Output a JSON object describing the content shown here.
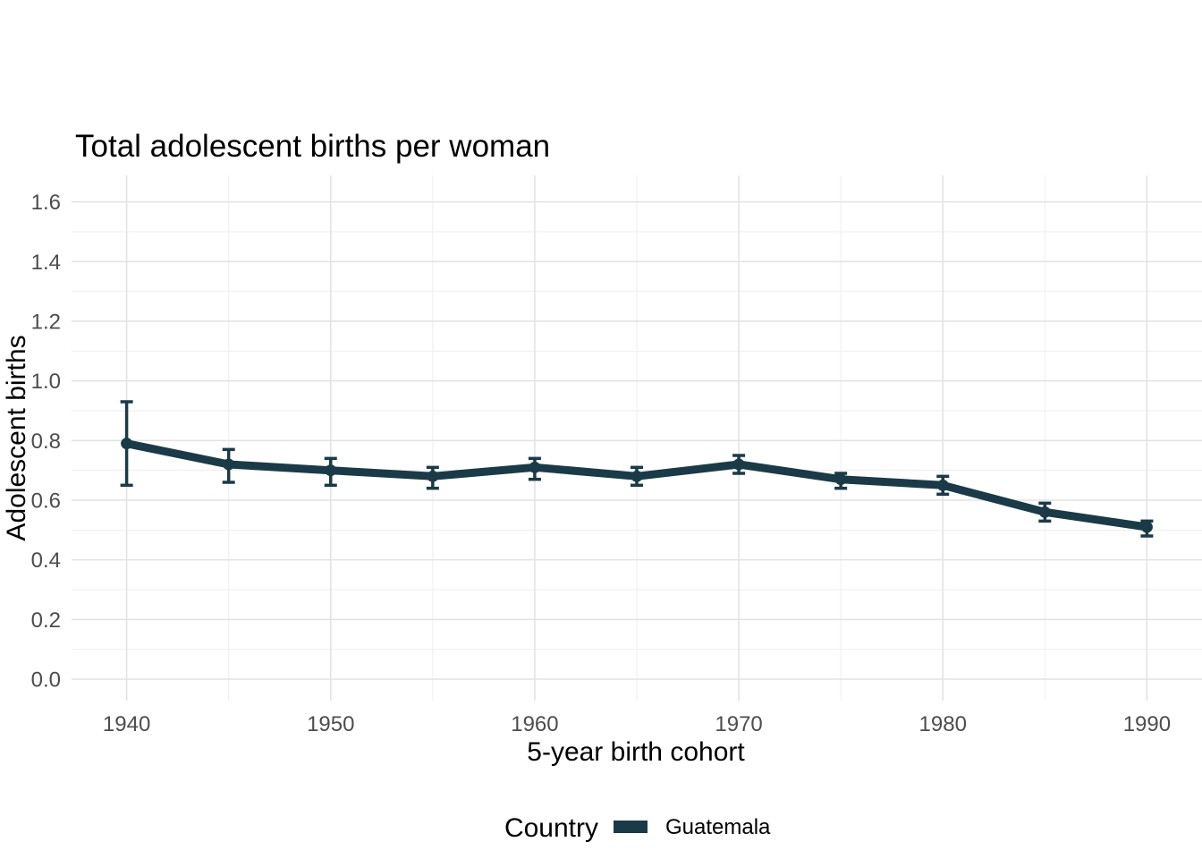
{
  "chart_data": {
    "type": "line",
    "title": "Total adolescent births per woman",
    "xlabel": "5-year birth cohort",
    "ylabel": "Adolescent births",
    "x": [
      1940,
      1945,
      1950,
      1955,
      1960,
      1965,
      1970,
      1975,
      1980,
      1985,
      1990
    ],
    "series": [
      {
        "name": "Guatemala",
        "values": [
          0.79,
          0.72,
          0.7,
          0.68,
          0.71,
          0.68,
          0.72,
          0.67,
          0.65,
          0.56,
          0.51
        ],
        "lower": [
          0.65,
          0.66,
          0.65,
          0.64,
          0.67,
          0.65,
          0.69,
          0.64,
          0.62,
          0.53,
          0.48
        ],
        "upper": [
          0.93,
          0.77,
          0.74,
          0.71,
          0.74,
          0.71,
          0.75,
          0.69,
          0.68,
          0.59,
          0.53
        ],
        "color": "#1b3a48"
      }
    ],
    "xlim": [
      1937.3,
      1992.7
    ],
    "ylim": [
      -0.072,
      1.689
    ],
    "x_ticks": {
      "values": [
        1940,
        1950,
        1960,
        1970,
        1980,
        1990
      ],
      "labels": [
        "1940",
        "1950",
        "1960",
        "1970",
        "1980",
        "1990"
      ]
    },
    "x_minor": [
      1945,
      1955,
      1965,
      1975,
      1985
    ],
    "y_ticks": {
      "values": [
        0.0,
        0.2,
        0.4,
        0.6,
        0.8,
        1.0,
        1.2,
        1.4,
        1.6
      ],
      "labels": [
        "0.0",
        "0.2",
        "0.4",
        "0.6",
        "0.8",
        "1.0",
        "1.2",
        "1.4",
        "1.6"
      ]
    },
    "y_minor": [
      0.1,
      0.3,
      0.5,
      0.7,
      0.9,
      1.1,
      1.3,
      1.5
    ],
    "grid": "major+minor, horizontal and vertical, on white panel, no axis lines, no ticks",
    "legend": {
      "position": "bottom",
      "title": "Country",
      "entries": [
        {
          "label": "Guatemala",
          "color": "#1b3a48"
        }
      ]
    }
  },
  "colors": {
    "line": "#1b3a48",
    "grid_major": "#e2e2e2",
    "grid_minor": "#eeeeee",
    "tick_text": "#4d4d4d",
    "title_text": "#000000",
    "background": "#ffffff"
  }
}
